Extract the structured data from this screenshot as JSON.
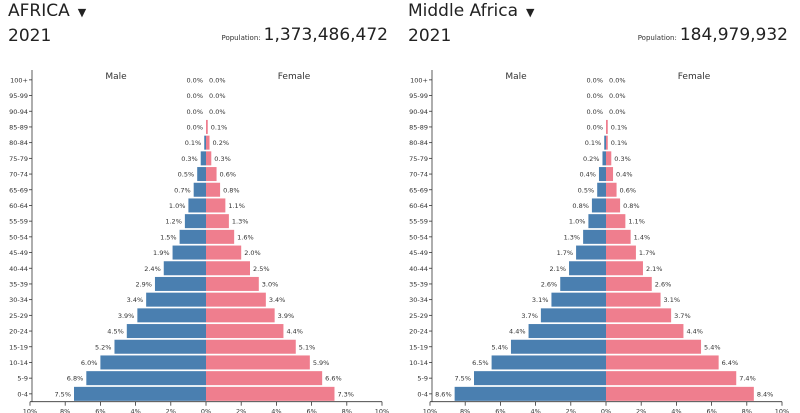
{
  "colors": {
    "male": "#4a7fb0",
    "female": "#ef7e8e",
    "axis": "#333333"
  },
  "icons": {
    "dropdown": "caret-down-icon"
  },
  "chart_data": [
    {
      "type": "bar",
      "orientation": "horizontal-population-pyramid",
      "region": "AFRICA",
      "year": "2021",
      "population_label": "Population:",
      "population": "1,373,486,472",
      "left_label": "Male",
      "right_label": "Female",
      "categories": [
        "100+",
        "95-99",
        "90-94",
        "85-89",
        "80-84",
        "75-79",
        "70-74",
        "65-69",
        "60-64",
        "55-59",
        "50-54",
        "45-49",
        "40-44",
        "35-39",
        "30-34",
        "25-29",
        "20-24",
        "15-19",
        "10-14",
        "5-9",
        "0-4"
      ],
      "series": [
        {
          "name": "Male",
          "values": [
            0.0,
            0.0,
            0.0,
            0.0,
            0.1,
            0.3,
            0.5,
            0.7,
            1.0,
            1.2,
            1.5,
            1.9,
            2.4,
            2.9,
            3.4,
            3.9,
            4.5,
            5.2,
            6.0,
            6.8,
            7.5
          ]
        },
        {
          "name": "Female",
          "values": [
            0.0,
            0.0,
            0.0,
            0.1,
            0.2,
            0.3,
            0.6,
            0.8,
            1.1,
            1.3,
            1.6,
            2.0,
            2.5,
            3.0,
            3.4,
            3.9,
            4.4,
            5.1,
            5.9,
            6.6,
            7.3
          ]
        }
      ],
      "value_labels_male": [
        "0.0%",
        "0.0%",
        "0.0%",
        "0.0%",
        "0.1%",
        "0.3%",
        "0.5%",
        "0.7%",
        "1.0%",
        "1.2%",
        "1.5%",
        "1.9%",
        "2.4%",
        "2.9%",
        "3.4%",
        "3.9%",
        "4.5%",
        "5.2%",
        "6.0%",
        "6.8%",
        "7.5%"
      ],
      "value_labels_female": [
        "0.0%",
        "0.0%",
        "0.0%",
        "0.1%",
        "0.2%",
        "0.3%",
        "0.6%",
        "0.8%",
        "1.1%",
        "1.3%",
        "1.6%",
        "2.0%",
        "2.5%",
        "3.0%",
        "3.4%",
        "3.9%",
        "4.4%",
        "5.1%",
        "5.9%",
        "6.6%",
        "7.3%"
      ],
      "xlim": [
        -10,
        10
      ],
      "x_ticks": [
        "10%",
        "8%",
        "6%",
        "4%",
        "2%",
        "0%",
        "2%",
        "4%",
        "6%",
        "8%",
        "10%"
      ]
    },
    {
      "type": "bar",
      "orientation": "horizontal-population-pyramid",
      "region": "Middle Africa",
      "year": "2021",
      "population_label": "Population:",
      "population": "184,979,932",
      "left_label": "Male",
      "right_label": "Female",
      "categories": [
        "100+",
        "95-99",
        "90-94",
        "85-89",
        "80-84",
        "75-79",
        "70-74",
        "65-69",
        "60-64",
        "55-59",
        "50-54",
        "45-49",
        "40-44",
        "35-39",
        "30-34",
        "25-29",
        "20-24",
        "15-19",
        "10-14",
        "5-9",
        "0-4"
      ],
      "series": [
        {
          "name": "Male",
          "values": [
            0.0,
            0.0,
            0.0,
            0.0,
            0.1,
            0.2,
            0.4,
            0.5,
            0.8,
            1.0,
            1.3,
            1.7,
            2.1,
            2.6,
            3.1,
            3.7,
            4.4,
            5.4,
            6.5,
            7.5,
            8.6
          ]
        },
        {
          "name": "Female",
          "values": [
            0.0,
            0.0,
            0.0,
            0.1,
            0.1,
            0.3,
            0.4,
            0.6,
            0.8,
            1.1,
            1.4,
            1.7,
            2.1,
            2.6,
            3.1,
            3.7,
            4.4,
            5.4,
            6.4,
            7.4,
            8.4
          ]
        }
      ],
      "value_labels_male": [
        "0.0%",
        "0.0%",
        "0.0%",
        "0.0%",
        "0.1%",
        "0.2%",
        "0.4%",
        "0.5%",
        "0.8%",
        "1.0%",
        "1.3%",
        "1.7%",
        "2.1%",
        "2.6%",
        "3.1%",
        "3.7%",
        "4.4%",
        "5.4%",
        "6.5%",
        "7.5%",
        "8.6%"
      ],
      "value_labels_female": [
        "0.0%",
        "0.0%",
        "0.0%",
        "0.1%",
        "0.1%",
        "0.3%",
        "0.4%",
        "0.6%",
        "0.8%",
        "1.1%",
        "1.4%",
        "1.7%",
        "2.1%",
        "2.6%",
        "3.1%",
        "3.7%",
        "4.4%",
        "5.4%",
        "6.4%",
        "7.4%",
        "8.4%"
      ],
      "xlim": [
        -10,
        10
      ],
      "x_ticks": [
        "10%",
        "8%",
        "6%",
        "4%",
        "2%",
        "0%",
        "2%",
        "4%",
        "6%",
        "8%",
        "10%"
      ]
    }
  ]
}
